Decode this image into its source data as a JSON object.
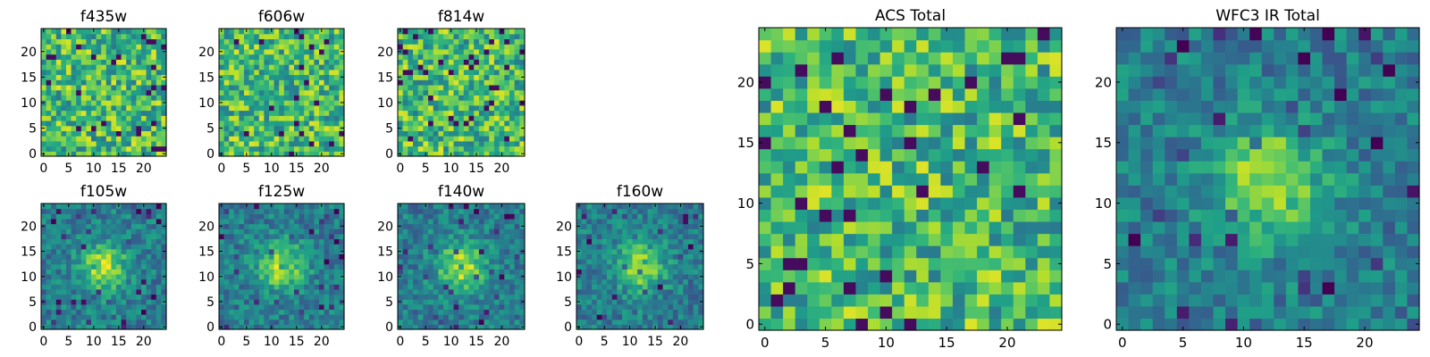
{
  "chart_data": [
    {
      "type": "heatmap",
      "title": "f435w",
      "xticks": [
        0,
        5,
        10,
        15,
        20
      ],
      "yticks": [
        0,
        5,
        10,
        15,
        20
      ],
      "xlim": [
        -0.5,
        24.5
      ],
      "ylim": [
        -0.5,
        24.5
      ],
      "grid_size": 25,
      "pattern": "noise",
      "colormap": "viridis"
    },
    {
      "type": "heatmap",
      "title": "f606w",
      "xticks": [
        0,
        5,
        10,
        15,
        20
      ],
      "yticks": [
        0,
        5,
        10,
        15,
        20
      ],
      "xlim": [
        -0.5,
        24.5
      ],
      "ylim": [
        -0.5,
        24.5
      ],
      "grid_size": 25,
      "pattern": "noise",
      "colormap": "viridis"
    },
    {
      "type": "heatmap",
      "title": "f814w",
      "xticks": [
        0,
        5,
        10,
        15,
        20
      ],
      "yticks": [
        0,
        5,
        10,
        15,
        20
      ],
      "xlim": [
        -0.5,
        24.5
      ],
      "ylim": [
        -0.5,
        24.5
      ],
      "grid_size": 25,
      "pattern": "noise",
      "colormap": "viridis"
    },
    {
      "type": "heatmap",
      "title": "f105w",
      "xticks": [
        0,
        5,
        10,
        15,
        20
      ],
      "yticks": [
        0,
        5,
        10,
        15,
        20
      ],
      "xlim": [
        -0.5,
        24.5
      ],
      "ylim": [
        -0.5,
        24.5
      ],
      "grid_size": 25,
      "pattern": "blob",
      "colormap": "viridis"
    },
    {
      "type": "heatmap",
      "title": "f125w",
      "xticks": [
        0,
        5,
        10,
        15,
        20
      ],
      "yticks": [
        0,
        5,
        10,
        15,
        20
      ],
      "xlim": [
        -0.5,
        24.5
      ],
      "ylim": [
        -0.5,
        24.5
      ],
      "grid_size": 25,
      "pattern": "blob",
      "colormap": "viridis"
    },
    {
      "type": "heatmap",
      "title": "f140w",
      "xticks": [
        0,
        5,
        10,
        15,
        20
      ],
      "yticks": [
        0,
        5,
        10,
        15,
        20
      ],
      "xlim": [
        -0.5,
        24.5
      ],
      "ylim": [
        -0.5,
        24.5
      ],
      "grid_size": 25,
      "pattern": "blob",
      "colormap": "viridis"
    },
    {
      "type": "heatmap",
      "title": "f160w",
      "xticks": [
        0,
        5,
        10,
        15,
        20
      ],
      "yticks": [
        0,
        5,
        10,
        15,
        20
      ],
      "xlim": [
        -0.5,
        24.5
      ],
      "ylim": [
        -0.5,
        24.5
      ],
      "grid_size": 25,
      "pattern": "blob",
      "colormap": "viridis"
    },
    {
      "type": "heatmap",
      "title": "ACS Total",
      "xticks": [
        0,
        5,
        10,
        15,
        20
      ],
      "yticks": [
        0,
        5,
        10,
        15,
        20
      ],
      "xlim": [
        -0.5,
        24.5
      ],
      "ylim": [
        -0.5,
        24.5
      ],
      "grid_size": 25,
      "pattern": "noise",
      "colormap": "viridis"
    },
    {
      "type": "heatmap",
      "title": "WFC3 IR Total",
      "xticks": [
        0,
        5,
        10,
        15,
        20
      ],
      "yticks": [
        0,
        5,
        10,
        15,
        20
      ],
      "xlim": [
        -0.5,
        24.5
      ],
      "ylim": [
        -0.5,
        24.5
      ],
      "grid_size": 25,
      "pattern": "blob",
      "colormap": "viridis"
    }
  ]
}
